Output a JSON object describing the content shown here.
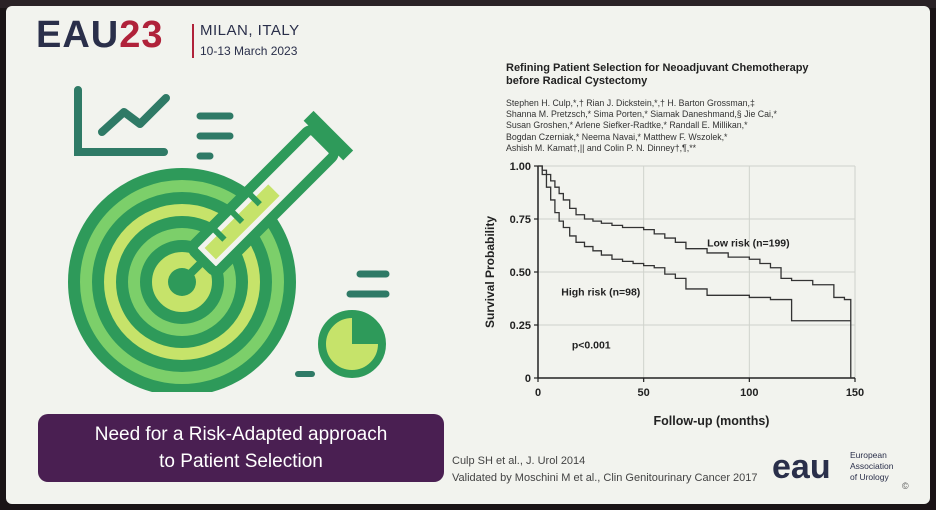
{
  "header": {
    "logo_text": "EAU",
    "logo_number": "23",
    "city": "MILAN, ITALY",
    "dates": "10-13 March 2023"
  },
  "paper": {
    "title_line1": "Refining Patient Selection for Neoadjuvant Chemotherapy",
    "title_line2": "before Radical Cystectomy",
    "authors": [
      "Stephen H. Culp,*,† Rian J. Dickstein,*,† H. Barton Grossman,‡",
      "Shanna M. Pretzsch,* Sima Porten,* Siamak Daneshmand,§ Jie Cai,*",
      "Susan Groshen,* Arlene Siefker-Radtke,* Randall E. Millikan,*",
      "Bogdan Czerniak,* Neema Navai,* Matthew F. Wszolek,*",
      "Ashish M. Kamat†,|| and Colin P. N. Dinney†,¶,**"
    ]
  },
  "chart_data": {
    "type": "line",
    "xlabel": "Follow-up (months)",
    "ylabel": "Survival Probability",
    "xlim": [
      0,
      150
    ],
    "ylim": [
      0,
      1
    ],
    "x_ticks": [
      "0",
      "50",
      "100",
      "150"
    ],
    "y_ticks": [
      "0",
      "0.25",
      "0.50",
      "0.75",
      "1.00"
    ],
    "grid": true,
    "annotation": "p<0.001",
    "series": [
      {
        "name": "Low risk (n=199)",
        "step": true,
        "x": [
          0,
          2,
          4,
          6,
          8,
          10,
          12,
          15,
          18,
          22,
          26,
          30,
          35,
          40,
          45,
          50,
          55,
          60,
          65,
          70,
          80,
          90,
          100,
          105,
          110,
          115,
          120,
          130,
          140,
          145,
          148
        ],
        "y": [
          1.0,
          0.98,
          0.96,
          0.93,
          0.9,
          0.87,
          0.84,
          0.8,
          0.77,
          0.75,
          0.74,
          0.73,
          0.72,
          0.71,
          0.71,
          0.7,
          0.68,
          0.66,
          0.64,
          0.61,
          0.59,
          0.57,
          0.56,
          0.54,
          0.52,
          0.47,
          0.46,
          0.44,
          0.38,
          0.37,
          0.0
        ]
      },
      {
        "name": "High risk (n=98)",
        "step": true,
        "x": [
          0,
          2,
          4,
          6,
          8,
          10,
          12,
          15,
          18,
          22,
          26,
          30,
          35,
          40,
          45,
          50,
          55,
          60,
          65,
          70,
          80,
          90,
          100,
          110,
          120,
          130,
          140,
          148
        ],
        "y": [
          1.0,
          0.96,
          0.9,
          0.84,
          0.78,
          0.74,
          0.71,
          0.67,
          0.64,
          0.62,
          0.6,
          0.58,
          0.56,
          0.55,
          0.54,
          0.53,
          0.52,
          0.49,
          0.47,
          0.42,
          0.39,
          0.39,
          0.38,
          0.37,
          0.27,
          0.27,
          0.27,
          0.27
        ]
      }
    ]
  },
  "banner": {
    "line1": "Need for a Risk-Adapted approach",
    "line2": "to Patient Selection"
  },
  "references": {
    "ref1": "Culp SH et al., J. Urol 2014",
    "ref2": "Validated by Moschini M et al., Clin Genitourinary Cancer 2017"
  },
  "footer": {
    "eau_mark": "eau",
    "assoc_line1": "European",
    "assoc_line2": "Association",
    "assoc_line3": "of Urology",
    "copyright": "©"
  },
  "colors": {
    "slide_bg": "#f2f3ee",
    "banner_bg": "#4a1f52",
    "logo_navy": "#2a2f4a",
    "logo_red": "#b0223a",
    "illus_dark_green": "#2e9a5a",
    "illus_light_green": "#c6e36a",
    "illus_teal": "#2f7a66"
  },
  "icons": [
    "growth-chart-icon",
    "syringe-target-icon",
    "pie-chart-icon"
  ]
}
